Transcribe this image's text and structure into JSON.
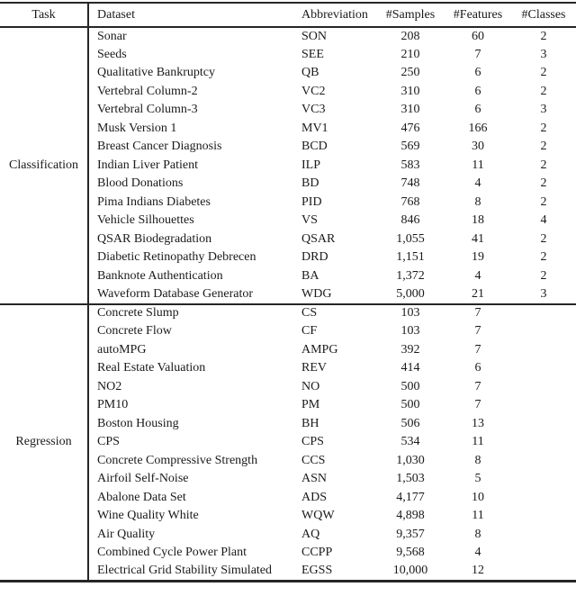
{
  "table": {
    "headers": [
      "Task",
      "Dataset",
      "Abbreviation",
      "#Samples",
      "#Features",
      "#Classes"
    ],
    "groups": [
      {
        "task": "Classification",
        "rows": [
          [
            "Sonar",
            "SON",
            "208",
            "60",
            "2"
          ],
          [
            "Seeds",
            "SEE",
            "210",
            "7",
            "3"
          ],
          [
            "Qualitative Bankruptcy",
            "QB",
            "250",
            "6",
            "2"
          ],
          [
            "Vertebral Column-2",
            "VC2",
            "310",
            "6",
            "2"
          ],
          [
            "Vertebral Column-3",
            "VC3",
            "310",
            "6",
            "3"
          ],
          [
            "Musk Version 1",
            "MV1",
            "476",
            "166",
            "2"
          ],
          [
            "Breast Cancer Diagnosis",
            "BCD",
            "569",
            "30",
            "2"
          ],
          [
            "Indian Liver Patient",
            "ILP",
            "583",
            "11",
            "2"
          ],
          [
            "Blood Donations",
            "BD",
            "748",
            "4",
            "2"
          ],
          [
            "Pima Indians Diabetes",
            "PID",
            "768",
            "8",
            "2"
          ],
          [
            "Vehicle Silhouettes",
            "VS",
            "846",
            "18",
            "4"
          ],
          [
            "QSAR Biodegradation",
            "QSAR",
            "1,055",
            "41",
            "2"
          ],
          [
            "Diabetic Retinopathy Debrecen",
            "DRD",
            "1,151",
            "19",
            "2"
          ],
          [
            "Banknote Authentication",
            "BA",
            "1,372",
            "4",
            "2"
          ],
          [
            "Waveform Database Generator",
            "WDG",
            "5,000",
            "21",
            "3"
          ]
        ]
      },
      {
        "task": "Regression",
        "rows": [
          [
            "Concrete Slump",
            "CS",
            "103",
            "7",
            ""
          ],
          [
            "Concrete Flow",
            "CF",
            "103",
            "7",
            ""
          ],
          [
            "autoMPG",
            "AMPG",
            "392",
            "7",
            ""
          ],
          [
            "Real Estate Valuation",
            "REV",
            "414",
            "6",
            ""
          ],
          [
            "NO2",
            "NO",
            "500",
            "7",
            ""
          ],
          [
            "PM10",
            "PM",
            "500",
            "7",
            ""
          ],
          [
            "Boston Housing",
            "BH",
            "506",
            "13",
            ""
          ],
          [
            "CPS",
            "CPS",
            "534",
            "11",
            ""
          ],
          [
            "Concrete Compressive Strength",
            "CCS",
            "1,030",
            "8",
            ""
          ],
          [
            "Airfoil Self-Noise",
            "ASN",
            "1,503",
            "5",
            ""
          ],
          [
            "Abalone Data Set",
            "ADS",
            "4,177",
            "10",
            ""
          ],
          [
            "Wine Quality White",
            "WQW",
            "4,898",
            "11",
            ""
          ],
          [
            "Air Quality",
            "AQ",
            "9,357",
            "8",
            ""
          ],
          [
            "Combined Cycle Power Plant",
            "CCPP",
            "9,568",
            "4",
            ""
          ],
          [
            "Electrical Grid Stability Simulated",
            "EGSS",
            "10,000",
            "12",
            ""
          ]
        ]
      }
    ]
  },
  "colors": {
    "text": "#1a1a1a",
    "rule": "#262626",
    "background": "#ffffff"
  }
}
